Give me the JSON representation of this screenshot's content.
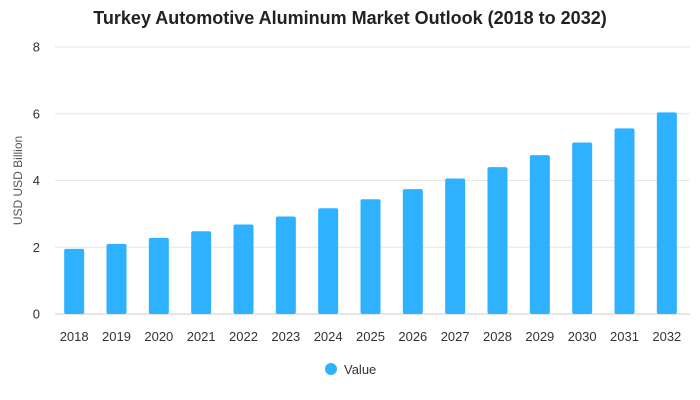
{
  "chart_data": {
    "type": "bar",
    "title": "Turkey Automotive Aluminum Market Outlook (2018 to 2032)",
    "xlabel": "",
    "ylabel": "USD USD Billion",
    "ylim": [
      0,
      8
    ],
    "yticks": [
      0,
      2,
      4,
      6,
      8
    ],
    "grid": true,
    "legend_position": "bottom",
    "categories": [
      "2018",
      "2019",
      "2020",
      "2021",
      "2022",
      "2023",
      "2024",
      "2025",
      "2026",
      "2027",
      "2028",
      "2029",
      "2030",
      "2031",
      "2032"
    ],
    "series": [
      {
        "name": "Value",
        "color": "#2eb1ff",
        "values": [
          1.95,
          2.1,
          2.28,
          2.48,
          2.68,
          2.92,
          3.17,
          3.44,
          3.74,
          4.06,
          4.4,
          4.76,
          5.14,
          5.56,
          6.04
        ]
      }
    ]
  }
}
